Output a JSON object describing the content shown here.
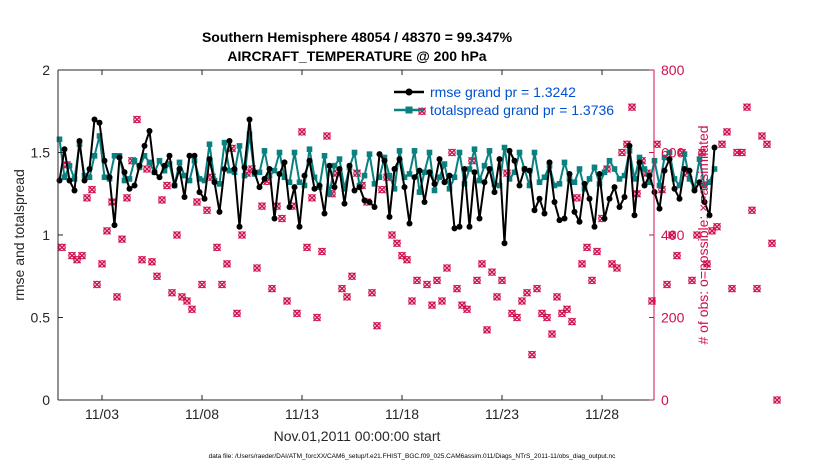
{
  "chart_data": {
    "type": "line",
    "title": "Southern Hemisphere 48054 / 48370 = 99.347%",
    "subtitle": "AIRCRAFT_TEMPERATURE @ 200 hPa",
    "xlabel": "Nov.01,2011 00:00:00 start",
    "ylabel_left": "rmse and totalspread",
    "ylabel_right": "# of obs: o=possible; ×=assimilated",
    "footnote": "data file: /Users/raeder/DAI/ATM_forcXX/CAM6_setup/f.e21.FHIST_BGC.f09_025.CAM6assim.011/Diags_NTrS_2011-11/obs_diag_output.nc",
    "xlim": [
      0.8,
      30.6
    ],
    "ylim_left": [
      0,
      2
    ],
    "ylim_right": [
      0,
      800
    ],
    "x_ticks": [
      3,
      8,
      13,
      18,
      23,
      28
    ],
    "x_tick_labels": [
      "11/03",
      "11/08",
      "11/13",
      "11/18",
      "11/23",
      "11/28"
    ],
    "y_ticks_left": [
      0,
      0.5,
      1,
      1.5,
      2
    ],
    "y_tick_labels_left": [
      "0",
      "0.5",
      "1",
      "1.5",
      "2"
    ],
    "y_ticks_right": [
      0,
      200,
      400,
      600,
      800
    ],
    "y_tick_labels_right": [
      "0",
      "200",
      "400",
      "600",
      "800"
    ],
    "legend": {
      "position": "top-right",
      "entries": [
        "rmse grand pr = 1.3242",
        "totalspread grand pr = 1.3736"
      ]
    },
    "colors": {
      "rmse": "#000000",
      "totalspread": "#0a8080",
      "obs": "#d0104c"
    },
    "x_start": 0.875,
    "x_step": 0.25,
    "series": [
      {
        "name": "rmse",
        "values": [
          1.33,
          1.52,
          1.33,
          1.27,
          1.57,
          1.33,
          1.4,
          1.7,
          1.68,
          1.45,
          1.35,
          1.06,
          1.47,
          1.38,
          1.28,
          1.3,
          1.42,
          1.54,
          1.63,
          1.38,
          1.35,
          1.42,
          1.48,
          1.3,
          1.4,
          1.23,
          1.48,
          1.48,
          1.26,
          1.22,
          1.46,
          1.32,
          1.14,
          1.4,
          1.57,
          1.4,
          1.05,
          1.41,
          1.7,
          1.38,
          1.29,
          1.34,
          1.4,
          1.1,
          1.37,
          1.44,
          1.17,
          1.29,
          1.05,
          1.36,
          1.45,
          1.28,
          1.3,
          1.13,
          1.42,
          1.29,
          1.4,
          1.19,
          1.42,
          1.27,
          1.29,
          1.21,
          1.2,
          1.17,
          1.49,
          1.45,
          1.11,
          1.4,
          1.46,
          1.29,
          1.07,
          1.35,
          1.39,
          1.2,
          1.38,
          1.31,
          1.46,
          1.32,
          1.36,
          1.04,
          1.05,
          1.4,
          1.05,
          1.38,
          1.1,
          1.32,
          1.4,
          1.26,
          1.46,
          0.95,
          1.51,
          1.45,
          1.3,
          1.4,
          1.39,
          1.15,
          1.22,
          1.13,
          1.44,
          1.2,
          1.09,
          1.1,
          1.37,
          1.14,
          1.08,
          1.31,
          1.22,
          1.05,
          1.37,
          1.1,
          1.22,
          1.29,
          1.17,
          1.23,
          1.54,
          1.12,
          1.44,
          1.3,
          1.36,
          1.26,
          1.16,
          1.39,
          1.46,
          1.28,
          1.22,
          1.4,
          1.39,
          1.27,
          1.32,
          1.2,
          1.12,
          1.53
        ]
      },
      {
        "name": "totalspread",
        "values": [
          1.58,
          1.35,
          1.42,
          1.34,
          1.55,
          1.36,
          1.35,
          1.48,
          1.6,
          1.35,
          1.34,
          1.48,
          1.48,
          1.33,
          1.34,
          1.45,
          1.41,
          1.48,
          1.44,
          1.38,
          1.45,
          1.39,
          1.43,
          1.3,
          1.44,
          1.36,
          1.33,
          1.45,
          1.34,
          1.33,
          1.55,
          1.33,
          1.31,
          1.56,
          1.39,
          1.38,
          1.54,
          1.36,
          1.61,
          1.37,
          1.38,
          1.51,
          1.36,
          1.39,
          1.5,
          1.35,
          1.32,
          1.5,
          1.32,
          1.3,
          1.52,
          1.35,
          1.29,
          1.48,
          1.25,
          1.42,
          1.46,
          1.28,
          1.41,
          1.5,
          1.3,
          1.36,
          1.49,
          1.31,
          1.35,
          1.47,
          1.36,
          1.28,
          1.51,
          1.35,
          1.37,
          1.51,
          1.26,
          1.38,
          1.5,
          1.27,
          1.35,
          1.43,
          1.28,
          1.35,
          1.5,
          1.31,
          1.4,
          1.52,
          1.33,
          1.42,
          1.51,
          1.31,
          1.3,
          1.53,
          1.34,
          1.38,
          1.5,
          1.4,
          1.3,
          1.5,
          1.32,
          1.35,
          1.42,
          1.3,
          1.31,
          1.44,
          1.34,
          1.32,
          1.4,
          1.28,
          1.34,
          1.41,
          1.31,
          1.38,
          1.45,
          1.4,
          1.34,
          1.36,
          1.51,
          1.34,
          1.47,
          1.4,
          1.32,
          1.45,
          1.3,
          1.47,
          1.5,
          1.34,
          1.3,
          1.49,
          1.34,
          1.28,
          1.46,
          1.3,
          1.32,
          1.4
        ]
      },
      {
        "name": "observations",
        "x_start": 1.0,
        "x_step": 0.25,
        "values": [
          370,
          570,
          350,
          340,
          350,
          490,
          510,
          280,
          330,
          410,
          480,
          250,
          390,
          490,
          580,
          680,
          340,
          560,
          335,
          300,
          485,
          520,
          260,
          400,
          250,
          240,
          220,
          480,
          280,
          460,
          540,
          370,
          280,
          330,
          610,
          210,
          400,
          550,
          560,
          320,
          470,
          530,
          270,
          470,
          440,
          240,
          470,
          210,
          650,
          370,
          490,
          200,
          360,
          640,
          500,
          550,
          270,
          250,
          300,
          550,
          520,
          480,
          260,
          180,
          510,
          540,
          400,
          380,
          350,
          340,
          240,
          290,
          700,
          280,
          230,
          290,
          240,
          320,
          600,
          270,
          230,
          220,
          580,
          290,
          330,
          170,
          310,
          250,
          290,
          550,
          210,
          200,
          240,
          260,
          110,
          270,
          210,
          200,
          160,
          250,
          210,
          220,
          190,
          490,
          330,
          370,
          290,
          360,
          440,
          560,
          330,
          320,
          600,
          620,
          710,
          500,
          580,
          550,
          240,
          620,
          510,
          280,
          400,
          350,
          600,
          550,
          290,
          400,
          600,
          330,
          410,
          420,
          620,
          650,
          270,
          600,
          600,
          710,
          460,
          270,
          640,
          620,
          380,
          0
        ]
      }
    ]
  }
}
